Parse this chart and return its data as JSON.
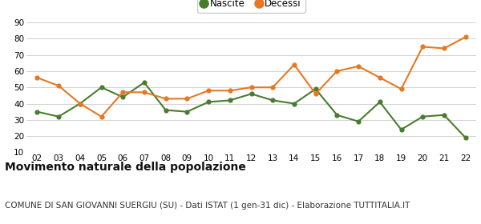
{
  "years": [
    "02",
    "03",
    "04",
    "05",
    "06",
    "07",
    "08",
    "09",
    "10",
    "11",
    "12",
    "13",
    "14",
    "15",
    "16",
    "17",
    "18",
    "19",
    "20",
    "21",
    "22"
  ],
  "nascite": [
    35,
    32,
    40,
    50,
    44,
    53,
    36,
    35,
    41,
    42,
    46,
    42,
    40,
    49,
    33,
    29,
    41,
    24,
    32,
    33,
    19
  ],
  "decessi": [
    56,
    51,
    40,
    32,
    47,
    47,
    43,
    43,
    48,
    48,
    50,
    50,
    64,
    46,
    60,
    63,
    56,
    49,
    75,
    74,
    81
  ],
  "nascite_color": "#4a7c2f",
  "decessi_color": "#e87722",
  "bg_color": "#ffffff",
  "grid_color": "#cccccc",
  "ylim": [
    10,
    90
  ],
  "yticks": [
    10,
    20,
    30,
    40,
    50,
    60,
    70,
    80,
    90
  ],
  "title": "Movimento naturale della popolazione",
  "subtitle": "COMUNE DI SAN GIOVANNI SUERGIU (SU) - Dati ISTAT (1 gen-31 dic) - Elaborazione TUTTITALIA.IT",
  "legend_nascite": "Nascite",
  "legend_decessi": "Decessi",
  "title_fontsize": 10,
  "subtitle_fontsize": 7.5,
  "legend_fontsize": 8.5,
  "tick_fontsize": 7.5,
  "linewidth": 1.5,
  "markersize": 4.5
}
